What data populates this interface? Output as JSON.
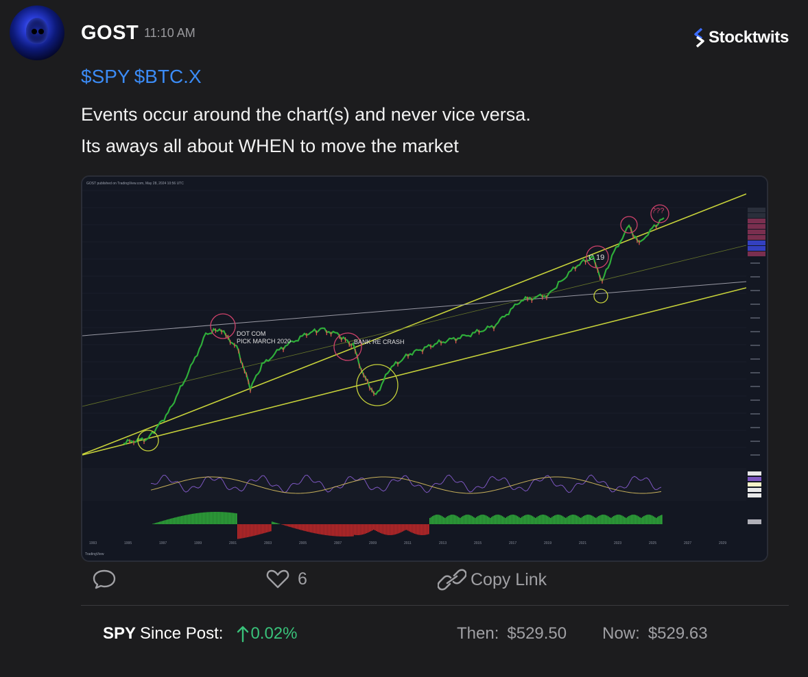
{
  "post": {
    "username": "GOST",
    "time": "11:10 AM",
    "tickers": [
      "$SPY",
      "$BTC.X"
    ],
    "lines": [
      "Events occur around the chart(s) and never vice versa.",
      "Its aways all about WHEN to move the market"
    ]
  },
  "brand": {
    "name": "Stocktwits",
    "icon": "stocktwits-logo-icon",
    "accent": "#3b6cff"
  },
  "chart_image": {
    "header": "GOST published on TradingView.com, May 28, 2024 10:56 UTC",
    "annotations": [
      "DOT COM",
      "PICK MARCH 2020",
      "BANK RE CRASH",
      "C 19",
      "???"
    ],
    "watermark": "TradingView",
    "x_years": [
      "1993",
      "1995",
      "1997",
      "1999",
      "2001",
      "2003",
      "2005",
      "2007",
      "2009",
      "2011",
      "2013",
      "2015",
      "2017",
      "2019",
      "2021",
      "2023",
      "2025",
      "2027",
      "2029"
    ],
    "colors": {
      "up": "#26a69a",
      "down": "#ef5350",
      "channel": "#c7d23a",
      "circle_red": "#d0426b",
      "circle_yellow": "#c7d23a"
    }
  },
  "actions": {
    "comment_icon": "comment-bubble-icon",
    "like_icon": "heart-icon",
    "like_count": "6",
    "copy_icon": "link-icon",
    "copy_label": "Copy Link"
  },
  "since_post": {
    "symbol": "SPY",
    "label": "Since Post:",
    "arrow_icon": "arrow-up-icon",
    "change": "0.02%",
    "change_color": "#39c27a",
    "then_label": "Then:",
    "then_value": "$529.50",
    "now_label": "Now:",
    "now_value": "$529.63"
  }
}
